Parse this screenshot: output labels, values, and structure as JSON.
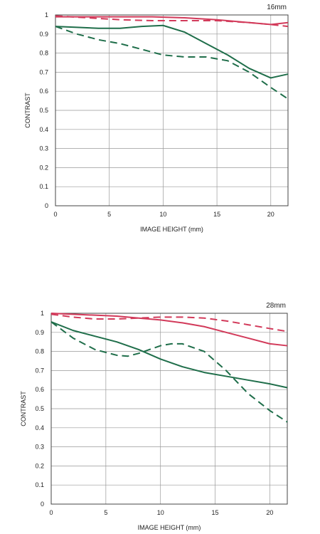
{
  "colors": {
    "sagittal_red": "#d23a5a",
    "green": "#1f6e4a",
    "grid": "#999999",
    "frame": "#444444"
  },
  "chart_data": [
    {
      "type": "line",
      "title": "16mm",
      "xlabel": "IMAGE HEIGHT (mm)",
      "ylabel": "CONTRAST",
      "xlim": [
        0,
        21.6
      ],
      "ylim": [
        0,
        1
      ],
      "x_ticks": [
        "0",
        "5",
        "10",
        "15",
        "20"
      ],
      "y_ticks": [
        "0",
        "0.1",
        "0.2",
        "0.3",
        "0.4",
        "0.5",
        "0.6",
        "0.7",
        "0.8",
        "0.9",
        "1"
      ],
      "grid": true,
      "series": [
        {
          "color": "red",
          "style": "solid",
          "x": [
            0,
            3,
            6,
            9,
            12,
            15,
            18,
            20,
            21.6
          ],
          "values": [
            0.99,
            0.99,
            0.99,
            0.99,
            0.985,
            0.975,
            0.96,
            0.95,
            0.96
          ]
        },
        {
          "color": "red",
          "style": "dashed",
          "x": [
            0,
            3,
            6,
            9,
            12,
            15,
            18,
            20,
            21.6
          ],
          "values": [
            0.995,
            0.985,
            0.975,
            0.97,
            0.97,
            0.97,
            0.96,
            0.95,
            0.94
          ]
        },
        {
          "color": "green",
          "style": "solid",
          "x": [
            0,
            2,
            4,
            6,
            8,
            10,
            12,
            14,
            16,
            18,
            20,
            21.6
          ],
          "values": [
            0.94,
            0.935,
            0.93,
            0.93,
            0.94,
            0.945,
            0.91,
            0.85,
            0.79,
            0.72,
            0.67,
            0.69
          ]
        },
        {
          "color": "green",
          "style": "dashed",
          "x": [
            0,
            2,
            4,
            6,
            8,
            10,
            12,
            14,
            16,
            18,
            20,
            21.6
          ],
          "values": [
            0.94,
            0.9,
            0.87,
            0.85,
            0.82,
            0.79,
            0.78,
            0.78,
            0.76,
            0.7,
            0.62,
            0.56
          ]
        }
      ]
    },
    {
      "type": "line",
      "title": "28mm",
      "xlabel": "IMAGE HEIGHT (mm)",
      "ylabel": "CONTRAST",
      "xlim": [
        0,
        21.6
      ],
      "ylim": [
        0,
        1
      ],
      "x_ticks": [
        "0",
        "5",
        "10",
        "15",
        "20"
      ],
      "y_ticks": [
        "0",
        "0.1",
        "0.2",
        "0.3",
        "0.4",
        "0.5",
        "0.6",
        "0.7",
        "0.8",
        "0.9",
        "1"
      ],
      "grid": true,
      "series": [
        {
          "color": "red",
          "style": "solid",
          "x": [
            0,
            2,
            4,
            6,
            8,
            10,
            12,
            14,
            16,
            18,
            20,
            21.6
          ],
          "values": [
            1.0,
            0.995,
            0.99,
            0.985,
            0.975,
            0.965,
            0.95,
            0.93,
            0.9,
            0.87,
            0.84,
            0.83
          ]
        },
        {
          "color": "red",
          "style": "dashed",
          "x": [
            0,
            2,
            4,
            6,
            8,
            10,
            12,
            14,
            16,
            18,
            20,
            21.6
          ],
          "values": [
            0.995,
            0.98,
            0.97,
            0.97,
            0.975,
            0.98,
            0.98,
            0.975,
            0.96,
            0.94,
            0.92,
            0.905
          ]
        },
        {
          "color": "green",
          "style": "solid",
          "x": [
            0,
            2,
            4,
            6,
            8,
            10,
            12,
            14,
            16,
            18,
            20,
            21.6
          ],
          "values": [
            0.955,
            0.91,
            0.88,
            0.85,
            0.81,
            0.76,
            0.72,
            0.69,
            0.67,
            0.65,
            0.63,
            0.61
          ]
        },
        {
          "color": "green",
          "style": "dashed",
          "x": [
            0,
            2,
            4,
            6,
            7,
            8,
            10,
            11,
            12,
            14,
            16,
            18,
            20,
            21.6
          ],
          "values": [
            0.955,
            0.87,
            0.81,
            0.78,
            0.775,
            0.79,
            0.83,
            0.84,
            0.84,
            0.8,
            0.7,
            0.58,
            0.49,
            0.43
          ]
        }
      ]
    }
  ]
}
